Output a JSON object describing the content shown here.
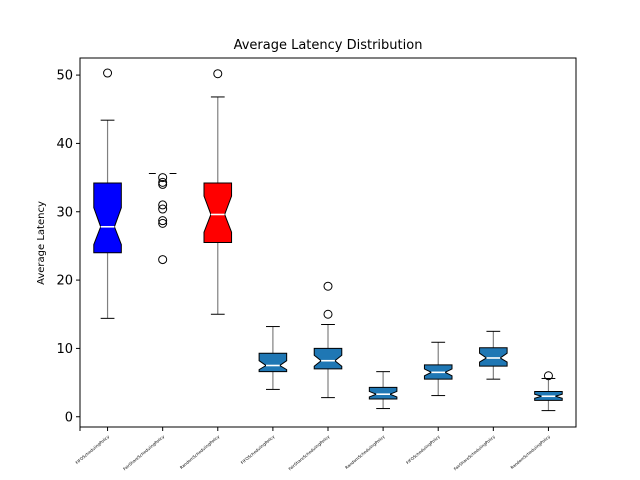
{
  "chart_data": {
    "type": "boxplot",
    "title": "Average Latency Distribution",
    "ylabel": "Average Latency",
    "xlabel": "",
    "ylim": [
      -1.5,
      52.5
    ],
    "yticks": [
      0,
      10,
      20,
      30,
      40,
      50
    ],
    "notched": true,
    "grid": false,
    "categories": [
      "FIFOSchedulingPolicy",
      "FairShareSchedulingPolicy",
      "RandomSchedulingPolicy",
      "FIFOSchedulingPolicy",
      "FairShareSchedulingPolicy",
      "RandomSchedulingPolicy",
      "FIFOSchedulingPolicy",
      "FairShareSchedulingPolicy",
      "RandomSchedulingPolicy"
    ],
    "boxes": [
      {
        "whislo": 14.4,
        "q1": 24.0,
        "med": 27.8,
        "q3": 34.2,
        "whishi": 43.4,
        "notch_lo": 25.2,
        "notch_hi": 30.6,
        "fliers": [
          50.3
        ],
        "color": "#0000ff"
      },
      {
        "whislo": 35.6,
        "q1": 35.6,
        "med": 35.6,
        "q3": 35.6,
        "whishi": 35.6,
        "notch_lo": 35.6,
        "notch_hi": 35.6,
        "fliers": [
          35.0,
          34.3,
          34.0,
          31.0,
          30.4,
          28.7,
          28.3,
          23.0
        ],
        "color": "#1f77b4"
      },
      {
        "whislo": 15.0,
        "q1": 25.5,
        "med": 29.6,
        "q3": 34.2,
        "whishi": 46.8,
        "notch_lo": 27.0,
        "notch_hi": 32.3,
        "fliers": [
          50.2
        ],
        "color": "#ff0000"
      },
      {
        "whislo": 4.0,
        "q1": 6.6,
        "med": 7.5,
        "q3": 9.3,
        "whishi": 13.2,
        "notch_lo": 6.9,
        "notch_hi": 8.2,
        "fliers": [],
        "color": "#1f77b4"
      },
      {
        "whislo": 2.8,
        "q1": 7.0,
        "med": 8.2,
        "q3": 10.0,
        "whishi": 13.5,
        "notch_lo": 7.4,
        "notch_hi": 9.0,
        "fliers": [
          19.1,
          15.0
        ],
        "color": "#1f77b4"
      },
      {
        "whislo": 1.2,
        "q1": 2.6,
        "med": 3.3,
        "q3": 4.3,
        "whishi": 6.6,
        "notch_lo": 2.9,
        "notch_hi": 3.7,
        "fliers": [],
        "color": "#1f77b4"
      },
      {
        "whislo": 3.1,
        "q1": 5.5,
        "med": 6.5,
        "q3": 7.6,
        "whishi": 10.9,
        "notch_lo": 6.0,
        "notch_hi": 7.0,
        "fliers": [],
        "color": "#1f77b4"
      },
      {
        "whislo": 5.5,
        "q1": 7.4,
        "med": 8.6,
        "q3": 10.1,
        "whishi": 12.5,
        "notch_lo": 8.0,
        "notch_hi": 9.3,
        "fliers": [],
        "color": "#1f77b4"
      },
      {
        "whislo": 0.9,
        "q1": 2.4,
        "med": 3.0,
        "q3": 3.7,
        "whishi": 5.6,
        "notch_lo": 2.7,
        "notch_hi": 3.3,
        "fliers": [
          6.0
        ],
        "color": "#1f77b4"
      }
    ]
  }
}
